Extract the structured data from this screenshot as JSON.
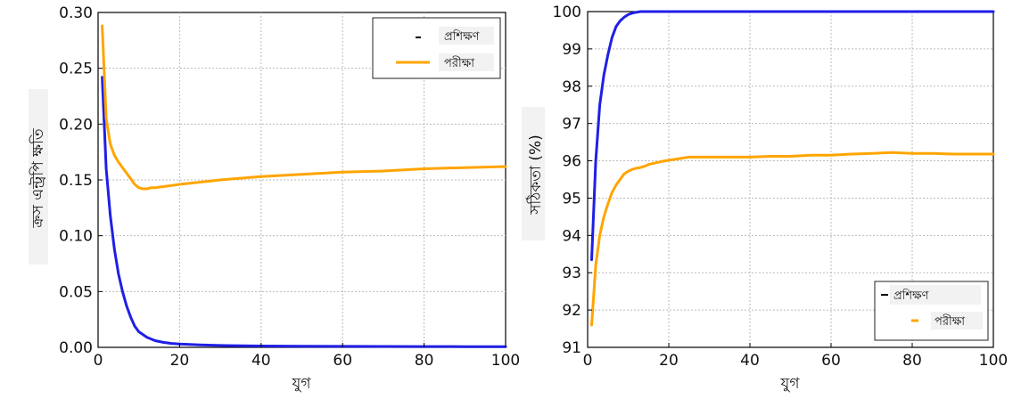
{
  "chart_data": [
    {
      "type": "line",
      "xlabel": "যুগ",
      "ylabel": "ক্রস এন্ট্রপি ক্ষতি",
      "xlim": [
        0,
        100
      ],
      "ylim": [
        0.0,
        0.3
      ],
      "x_ticks": [
        "0",
        "20",
        "40",
        "60",
        "80",
        "100"
      ],
      "y_ticks": [
        "0.00",
        "0.05",
        "0.10",
        "0.15",
        "0.20",
        "0.25",
        "0.30"
      ],
      "grid": true,
      "legend_position": "top-right",
      "series": [
        {
          "name": "প্রশিক্ষণ",
          "color": "#1f1fe6",
          "x": [
            1,
            2,
            3,
            4,
            5,
            6,
            7,
            8,
            9,
            10,
            12,
            14,
            16,
            18,
            20,
            25,
            30,
            40,
            50,
            60,
            70,
            80,
            90,
            100
          ],
          "y": [
            0.242,
            0.16,
            0.118,
            0.088,
            0.066,
            0.05,
            0.037,
            0.027,
            0.019,
            0.014,
            0.009,
            0.006,
            0.0045,
            0.0035,
            0.003,
            0.0022,
            0.0017,
            0.0012,
            0.001,
            0.0009,
            0.0008,
            0.0007,
            0.0006,
            0.0006
          ]
        },
        {
          "name": "পরীক্ষা",
          "color": "#ffa500",
          "x": [
            1,
            2,
            3,
            4,
            5,
            6,
            7,
            8,
            9,
            10,
            11,
            12,
            13,
            14,
            16,
            18,
            20,
            25,
            30,
            40,
            50,
            60,
            70,
            80,
            90,
            100
          ],
          "y": [
            0.288,
            0.205,
            0.182,
            0.172,
            0.166,
            0.161,
            0.156,
            0.151,
            0.146,
            0.143,
            0.142,
            0.142,
            0.143,
            0.143,
            0.144,
            0.145,
            0.146,
            0.148,
            0.15,
            0.153,
            0.155,
            0.157,
            0.158,
            0.16,
            0.161,
            0.162
          ]
        }
      ]
    },
    {
      "type": "line",
      "xlabel": "যুগ",
      "ylabel": "সঠিকতা (%)",
      "xlim": [
        0,
        100
      ],
      "ylim": [
        91,
        100
      ],
      "x_ticks": [
        "0",
        "20",
        "40",
        "60",
        "80",
        "100"
      ],
      "y_ticks": [
        "91",
        "92",
        "93",
        "94",
        "95",
        "96",
        "97",
        "98",
        "99",
        "100"
      ],
      "grid": true,
      "legend_position": "bottom-right",
      "series": [
        {
          "name": "প্রশিক্ষণ",
          "color": "#1f1fe6",
          "x": [
            1,
            2,
            3,
            4,
            5,
            6,
            7,
            8,
            9,
            10,
            11,
            12,
            13,
            14,
            15,
            20,
            30,
            40,
            50,
            60,
            70,
            80,
            90,
            100
          ],
          "y": [
            93.35,
            96.0,
            97.5,
            98.3,
            98.85,
            99.3,
            99.6,
            99.75,
            99.85,
            99.92,
            99.96,
            99.98,
            100,
            100,
            100,
            100,
            100,
            100,
            100,
            100,
            100,
            100,
            100,
            100
          ]
        },
        {
          "name": "পরীক্ষা",
          "color": "#ffa500",
          "x": [
            1,
            2,
            3,
            4,
            5,
            6,
            7,
            8,
            9,
            10,
            11,
            12,
            13,
            14,
            15,
            17,
            19,
            22,
            25,
            28,
            30,
            35,
            40,
            45,
            50,
            55,
            60,
            65,
            70,
            75,
            80,
            85,
            90,
            95,
            100
          ],
          "y": [
            91.6,
            93.2,
            94.0,
            94.5,
            94.85,
            95.15,
            95.35,
            95.5,
            95.65,
            95.72,
            95.77,
            95.8,
            95.82,
            95.85,
            95.9,
            95.95,
            96.0,
            96.05,
            96.1,
            96.1,
            96.1,
            96.1,
            96.1,
            96.12,
            96.12,
            96.15,
            96.15,
            96.18,
            96.2,
            96.22,
            96.2,
            96.2,
            96.18,
            96.18,
            96.18
          ]
        }
      ]
    }
  ]
}
